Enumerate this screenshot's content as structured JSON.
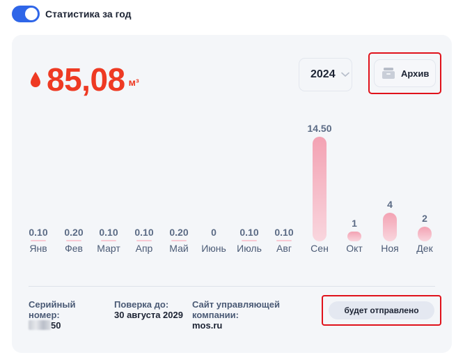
{
  "header": {
    "toggle_label": "Статистика за год",
    "toggle_on": true
  },
  "summary": {
    "total_value": "85,08",
    "unit": "м³"
  },
  "controls": {
    "year": "2024",
    "archive_label": "Архив"
  },
  "colors": {
    "accent_red": "#ee3a23",
    "toggle_blue": "#2f66e8",
    "bar_pink": "#f3a2b3",
    "highlight_outline": "#e0121b"
  },
  "chart_data": {
    "type": "bar",
    "categories": [
      "Янв",
      "Фев",
      "Март",
      "Апр",
      "Май",
      "Июнь",
      "Июль",
      "Авг",
      "Сен",
      "Окт",
      "Ноя",
      "Дек"
    ],
    "values": [
      0.1,
      0.2,
      0.1,
      0.1,
      0.2,
      0,
      0.1,
      0.1,
      14.5,
      1,
      4,
      2
    ],
    "value_labels": [
      "0.10",
      "0.20",
      "0.10",
      "0.10",
      "0.20",
      "0",
      "0.10",
      "0.10",
      "14.50",
      "1",
      "4",
      "2"
    ],
    "title": "",
    "xlabel": "",
    "ylabel": ""
  },
  "footer": {
    "serial_label": "Серийный номер:",
    "serial_value": "50",
    "verification_label": "Поверка до:",
    "verification_value": "30 августа 2029",
    "company_label": "Сайт управляющей компании:",
    "company_value": "mos.ru",
    "send_label": "будет отправлено"
  }
}
